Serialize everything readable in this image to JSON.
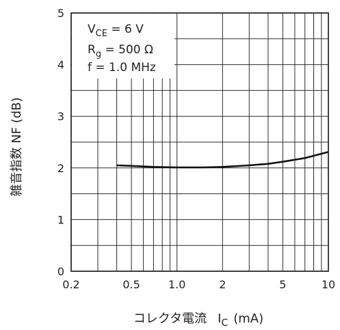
{
  "chart_data": {
    "type": "line",
    "x_scale": "log",
    "xlim": [
      0.2,
      10
    ],
    "ylim": [
      0,
      5
    ],
    "x_ticks": [
      "0.2",
      "0.5",
      "1.0",
      "2",
      "5",
      "10"
    ],
    "y_ticks": [
      "0",
      "1",
      "2",
      "3",
      "4",
      "5"
    ],
    "xlabel_main": "コレクタ電流",
    "xlabel_symbol": "I",
    "xlabel_subscript": "C",
    "xlabel_unit": "(mA)",
    "ylabel": "雑音指数 NF (dB)",
    "conditions": {
      "vce_symbol": "V",
      "vce_subscript": "CE",
      "vce_value": " = 6 V",
      "rg_symbol": "R",
      "rg_subscript": "g",
      "rg_value": " = 500 Ω",
      "freq": "f = 1.0 MHz"
    },
    "grid": true,
    "series": [
      {
        "x": [
          0.4,
          0.5,
          0.7,
          1.0,
          1.5,
          2.0,
          3.0,
          4.0,
          5.0,
          7.0,
          10.0
        ],
        "values": [
          2.05,
          2.04,
          2.02,
          2.01,
          2.01,
          2.02,
          2.05,
          2.08,
          2.12,
          2.19,
          2.31
        ]
      }
    ]
  }
}
